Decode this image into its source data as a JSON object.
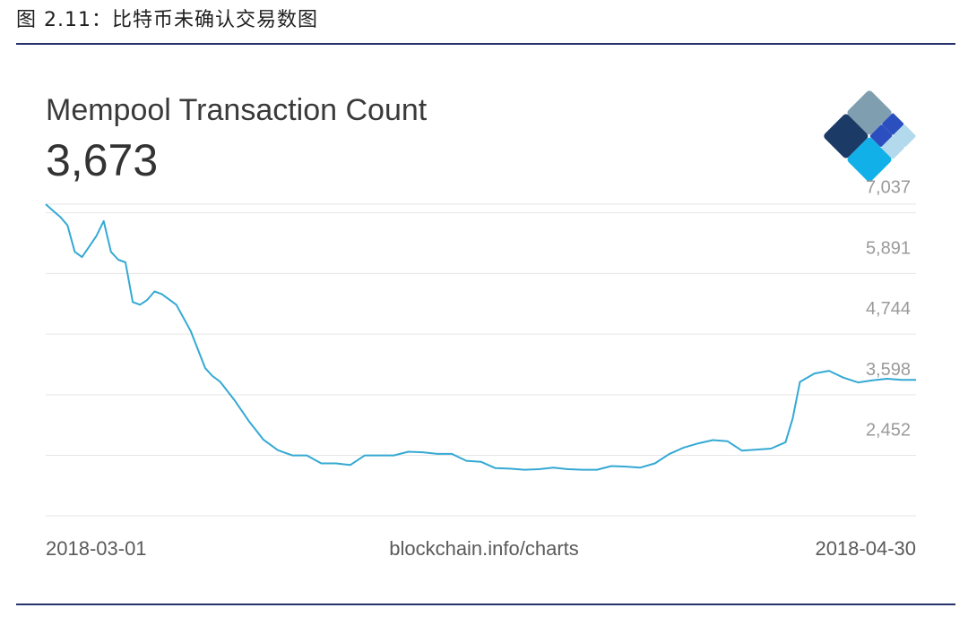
{
  "figure": {
    "caption": "图 2.11：比特币未确认交易数图"
  },
  "header": {
    "title": "Mempool Transaction Count",
    "current_value": "3,673",
    "logo_icon": "blockchain-diamond-logo"
  },
  "footer": {
    "source": "blockchain.info/charts"
  },
  "colors": {
    "line": "#34a9d3",
    "rule": "#27316b",
    "grid": "#e6e6e6"
  },
  "chart_data": {
    "type": "line",
    "title": "Mempool Transaction Count",
    "xlabel": "",
    "ylabel": "",
    "x_range": [
      "2018-03-01",
      "2018-04-30"
    ],
    "x_tick_labels": [
      "2018-03-01",
      "2018-04-30"
    ],
    "y_ticks": [
      2452,
      3598,
      4744,
      5891,
      7037
    ],
    "y_tick_labels": [
      "2,452",
      "3,598",
      "4,744",
      "5,891",
      "7,037"
    ],
    "ylim": [
      1310,
      7200
    ],
    "grid": true,
    "series": [
      {
        "x": [
          0,
          0.4,
          1,
          1.5,
          2,
          2.5,
          3,
          3.5,
          4,
          4.5,
          5,
          5.5,
          6,
          6.5,
          7,
          7.5,
          8,
          9,
          10,
          11,
          11.5,
          12,
          13,
          14,
          15,
          16,
          17,
          18,
          19,
          20,
          21,
          22,
          23,
          24,
          25,
          26,
          27,
          28,
          29,
          30,
          31,
          32,
          33,
          34,
          35,
          36,
          37,
          38,
          39,
          40,
          41,
          42,
          43,
          44,
          45,
          46,
          47,
          48,
          49,
          50,
          51,
          51.5,
          52,
          53,
          54,
          55,
          56,
          57,
          58,
          59,
          60
        ],
        "values": [
          7200,
          7100,
          6960,
          6800,
          6300,
          6200,
          6400,
          6600,
          6880,
          6300,
          6150,
          6100,
          5350,
          5300,
          5390,
          5550,
          5500,
          5300,
          4800,
          4100,
          3950,
          3850,
          3500,
          3100,
          2750,
          2550,
          2450,
          2450,
          2300,
          2300,
          2270,
          2450,
          2450,
          2450,
          2520,
          2510,
          2480,
          2480,
          2350,
          2330,
          2210,
          2200,
          2180,
          2190,
          2220,
          2190,
          2180,
          2180,
          2250,
          2240,
          2220,
          2300,
          2480,
          2600,
          2680,
          2740,
          2720,
          2540,
          2560,
          2580,
          2700,
          3150,
          3840,
          4000,
          4050,
          3920,
          3830,
          3870,
          3900,
          3880,
          3880
        ]
      }
    ]
  }
}
